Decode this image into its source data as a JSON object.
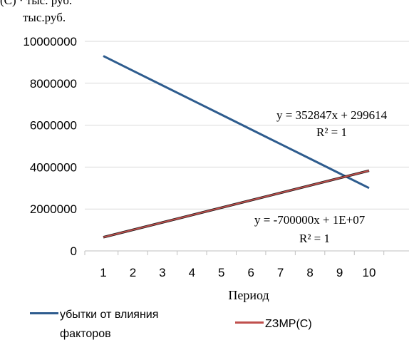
{
  "top_fragment": "(C) · тыс. руб.",
  "chart_data": {
    "type": "line",
    "ylabel": "тыс.руб.",
    "xlabel": "Период",
    "x": [
      1,
      2,
      3,
      4,
      5,
      6,
      7,
      8,
      9,
      10
    ],
    "ylim": [
      0,
      10000000
    ],
    "yticks": [
      "0",
      "2000000",
      "4000000",
      "6000000",
      "8000000",
      "10000000"
    ],
    "series": [
      {
        "name": "убытки от влияния факторов",
        "color": "#2e5c8e",
        "values": [
          9300000,
          8600000,
          7900000,
          7200000,
          6500000,
          5800000,
          5100000,
          4400000,
          3700000,
          3000000
        ]
      },
      {
        "name": "ZЗМР(С)",
        "color": "#c0504d",
        "values": [
          652461,
          1005308,
          1358155,
          1711002,
          2063849,
          2416696,
          2769543,
          3122390,
          3475237,
          3828084
        ]
      }
    ],
    "trendlines": [
      {
        "equation": "y = 352847x + 299614",
        "r2": "R² = 1"
      },
      {
        "equation": "y = -700000x + 1E+07",
        "r2": "R² = 1"
      }
    ],
    "grid": "horizontal",
    "legend_position": "bottom"
  },
  "legend": {
    "item1_line1": "убытки от влияния",
    "item1_line2": "факторов",
    "item2": "ZЗМР(С)"
  }
}
